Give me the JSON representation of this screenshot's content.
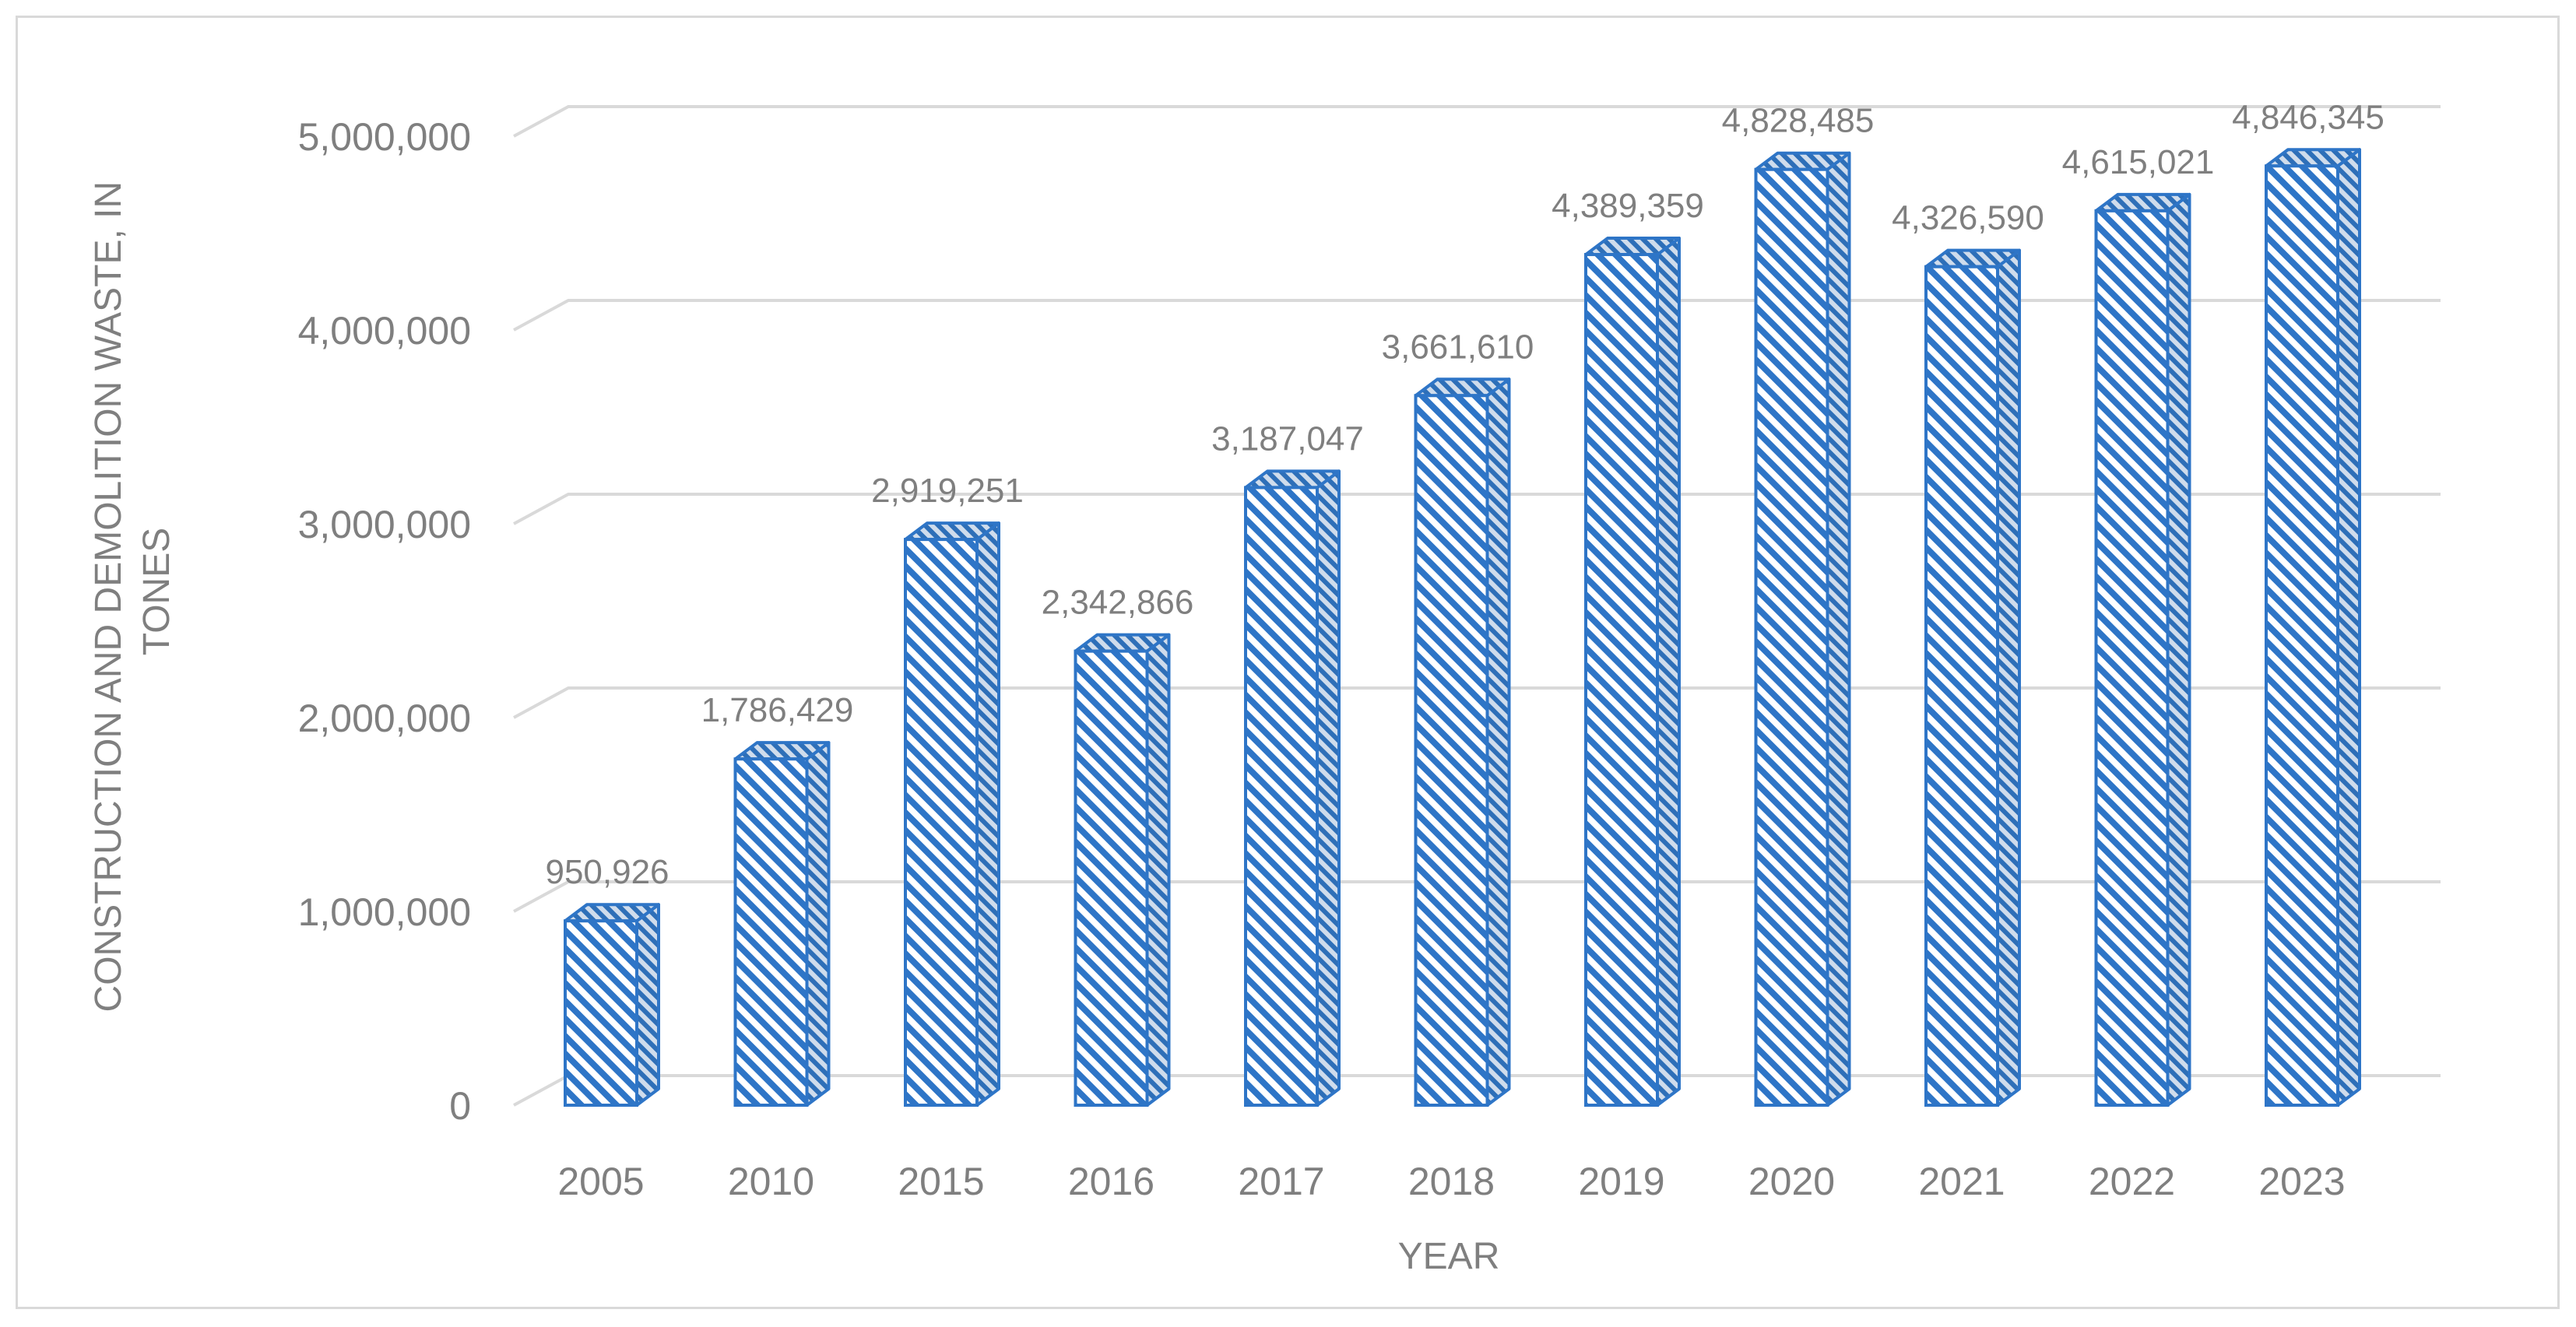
{
  "chart_data": {
    "type": "bar",
    "categories": [
      "2005",
      "2010",
      "2015",
      "2016",
      "2017",
      "2018",
      "2019",
      "2020",
      "2021",
      "2022",
      "2023"
    ],
    "values": [
      950926,
      1786429,
      2919251,
      2342866,
      3187047,
      3661610,
      4389359,
      4828485,
      4326590,
      4615021,
      4846345
    ],
    "data_labels": [
      "950,926",
      "1,786,429",
      "2,919,251",
      "2,342,866",
      "3,187,047",
      "3,661,610",
      "4,389,359",
      "4,828,485",
      "4,326,590",
      "4,615,021",
      "4,846,345"
    ],
    "yticks": [
      0,
      1000000,
      2000000,
      3000000,
      4000000,
      5000000
    ],
    "ytick_labels": [
      "0",
      "1,000,000",
      "2,000,000",
      "3,000,000",
      "4,000,000",
      "5,000,000"
    ],
    "ylim": [
      0,
      5000000
    ],
    "xlabel": "YEAR",
    "ylabel_lines": [
      "CONSTRUCTION AND DEMOLITION WASTE, IN",
      "TONES"
    ],
    "grid": true,
    "legend": "none",
    "style": "3d-hatched",
    "colors": {
      "bar_stroke": "#2e75c7",
      "bar_hatch": "#2e75c7",
      "bar_fill": "#ffffff",
      "grid": "#d9d9d9",
      "text": "#7f7f7f",
      "frame": "#d9d9d9"
    }
  }
}
